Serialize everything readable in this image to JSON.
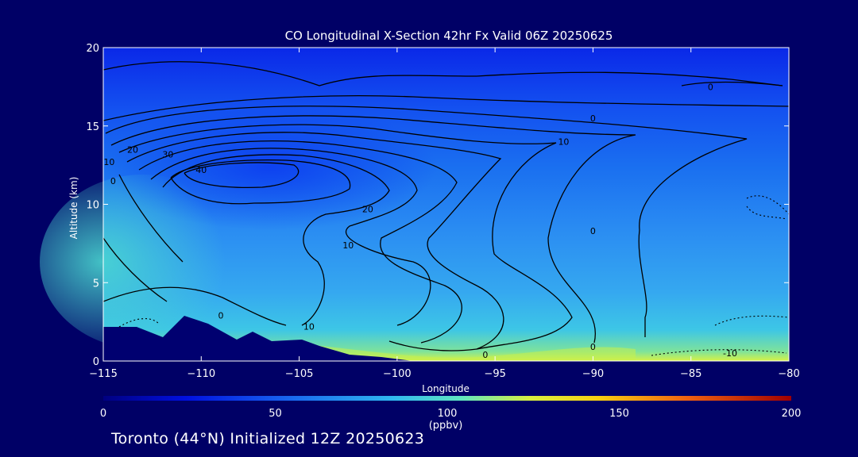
{
  "chart_data": {
    "type": "heatmap",
    "title": "CO Longitudinal X-Section 42hr  Fx Valid 06Z 20250625",
    "xlabel": "Longitude",
    "ylabel": "Altitude (km)",
    "xlim": [
      -115,
      -80
    ],
    "ylim": [
      0,
      20
    ],
    "x_ticks": [
      -115,
      -110,
      -105,
      -100,
      -95,
      -90,
      -85,
      -80
    ],
    "x_tick_labels": [
      "−115",
      "−110",
      "−105",
      "−100",
      "−95",
      "−90",
      "−85",
      "−80"
    ],
    "y_ticks": [
      0,
      5,
      10,
      15,
      20
    ],
    "y_tick_labels": [
      "0",
      "5",
      "10",
      "15",
      "20"
    ],
    "colorbar": {
      "label": "(ppbv)",
      "range": [
        0,
        200
      ],
      "ticks": [
        0,
        50,
        100,
        150,
        200
      ],
      "tick_labels": [
        "0",
        "50",
        "100",
        "150",
        "200"
      ]
    },
    "contour_labels": [
      {
        "text": "0",
        "lon": -84,
        "alt": 17.5
      },
      {
        "text": "0",
        "lon": -90,
        "alt": 15.5
      },
      {
        "text": "10",
        "lon": -91.5,
        "alt": 14.0
      },
      {
        "text": "20",
        "lon": -113.5,
        "alt": 13.5
      },
      {
        "text": "30",
        "lon": -111.7,
        "alt": 13.2
      },
      {
        "text": "10",
        "lon": -114.7,
        "alt": 12.7
      },
      {
        "text": "40",
        "lon": -110,
        "alt": 12.2
      },
      {
        "text": "0",
        "lon": -114.5,
        "alt": 11.5
      },
      {
        "text": "20",
        "lon": -101.5,
        "alt": 9.7
      },
      {
        "text": "0",
        "lon": -90,
        "alt": 8.3
      },
      {
        "text": "10",
        "lon": -102.5,
        "alt": 7.4
      },
      {
        "text": "0",
        "lon": -109,
        "alt": 2.9
      },
      {
        "text": "10",
        "lon": -104.5,
        "alt": 2.2
      },
      {
        "text": "0",
        "lon": -95.5,
        "alt": 0.4
      },
      {
        "text": "0",
        "lon": -90,
        "alt": 0.9
      },
      {
        "text": "-10",
        "lon": -83,
        "alt": 0.5
      }
    ]
  },
  "footer": "Toronto (44°N) Initialized 12Z 20250623"
}
